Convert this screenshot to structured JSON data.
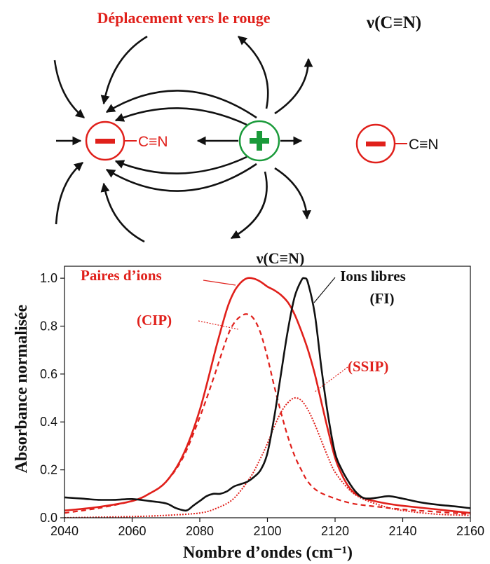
{
  "diagram": {
    "redshift_label": "Déplacement vers le rouge",
    "vibration_label": "ν(C≡N)",
    "anion_sign": "−",
    "cation_sign": "+",
    "cyanide_group": "C≡N",
    "free_cyanide_group": "C≡N",
    "colors": {
      "anion": "#e0201b",
      "cation": "#1a9a3a",
      "arrows": "#111111"
    }
  },
  "chart_data": {
    "type": "line",
    "title": "ν(C≡N)",
    "xlabel": "Nombre d’ondes (cm⁻¹)",
    "ylabel": "Absorbance normalisée",
    "xlim": [
      2040,
      2160
    ],
    "ylim": [
      0,
      1.05
    ],
    "xticks": [
      2040,
      2060,
      2080,
      2100,
      2120,
      2140,
      2160
    ],
    "yticks": [
      0.0,
      0.2,
      0.4,
      0.6,
      0.8,
      1.0
    ],
    "xtick_labels": [
      "2040",
      "2060",
      "2080",
      "2100",
      "2120",
      "2140",
      "2160"
    ],
    "ytick_labels": [
      "0.0",
      "0.2",
      "0.4",
      "0.6",
      "0.8",
      "1.0"
    ],
    "grid": false,
    "annotations": [
      {
        "text": "Paires d’ions",
        "color": "#e0201b"
      },
      {
        "text": "(CIP)",
        "color": "#e0201b"
      },
      {
        "text": "(SSIP)",
        "color": "#e0201b"
      },
      {
        "text": "Ions libres",
        "color": "#111111"
      },
      {
        "text": "(FI)",
        "color": "#111111"
      }
    ],
    "series": [
      {
        "color": "#e0201b",
        "style": "solid",
        "x": [
          2040,
          2050,
          2060,
          2065,
          2070,
          2075,
          2080,
          2085,
          2088,
          2090,
          2092,
          2094,
          2096,
          2098,
          2100,
          2102,
          2104,
          2106,
          2108,
          2110,
          2112,
          2114,
          2116,
          2118,
          2120,
          2122,
          2124,
          2126,
          2128,
          2130,
          2135,
          2140,
          2150,
          2160
        ],
        "y": [
          0.03,
          0.045,
          0.07,
          0.1,
          0.15,
          0.26,
          0.45,
          0.72,
          0.87,
          0.94,
          0.98,
          1.0,
          0.998,
          0.985,
          0.965,
          0.95,
          0.93,
          0.9,
          0.85,
          0.78,
          0.7,
          0.6,
          0.48,
          0.36,
          0.25,
          0.18,
          0.13,
          0.1,
          0.085,
          0.075,
          0.06,
          0.05,
          0.035,
          0.02
        ]
      },
      {
        "color": "#e0201b",
        "style": "dashed",
        "x": [
          2040,
          2050,
          2060,
          2065,
          2070,
          2075,
          2080,
          2084,
          2088,
          2090,
          2092,
          2094,
          2096,
          2098,
          2100,
          2102,
          2104,
          2106,
          2108,
          2110,
          2112,
          2115,
          2120,
          2125,
          2130,
          2140,
          2150,
          2160
        ],
        "y": [
          0.02,
          0.04,
          0.07,
          0.1,
          0.15,
          0.25,
          0.42,
          0.58,
          0.75,
          0.81,
          0.84,
          0.85,
          0.83,
          0.77,
          0.67,
          0.55,
          0.44,
          0.34,
          0.26,
          0.2,
          0.15,
          0.11,
          0.08,
          0.06,
          0.05,
          0.035,
          0.025,
          0.015
        ]
      },
      {
        "color": "#e0201b",
        "style": "dotted",
        "x": [
          2040,
          2060,
          2070,
          2080,
          2085,
          2090,
          2095,
          2098,
          2100,
          2102,
          2104,
          2106,
          2108,
          2110,
          2112,
          2114,
          2116,
          2118,
          2120,
          2124,
          2128,
          2135,
          2140,
          2150,
          2160
        ],
        "y": [
          0.0,
          0.005,
          0.01,
          0.02,
          0.04,
          0.08,
          0.17,
          0.25,
          0.31,
          0.38,
          0.44,
          0.48,
          0.5,
          0.49,
          0.45,
          0.39,
          0.32,
          0.25,
          0.19,
          0.12,
          0.08,
          0.045,
          0.03,
          0.015,
          0.01
        ]
      },
      {
        "color": "#111111",
        "style": "solid",
        "x": [
          2040,
          2045,
          2050,
          2055,
          2060,
          2065,
          2070,
          2073,
          2076,
          2078,
          2080,
          2082,
          2084,
          2086,
          2088,
          2090,
          2092,
          2094,
          2096,
          2098,
          2100,
          2102,
          2104,
          2106,
          2108,
          2110,
          2111,
          2112,
          2114,
          2116,
          2118,
          2120,
          2122,
          2124,
          2126,
          2128,
          2130,
          2133,
          2136,
          2140,
          2145,
          2150,
          2155,
          2160
        ],
        "y": [
          0.085,
          0.08,
          0.075,
          0.075,
          0.078,
          0.07,
          0.06,
          0.04,
          0.03,
          0.05,
          0.07,
          0.09,
          0.1,
          0.1,
          0.11,
          0.13,
          0.14,
          0.15,
          0.17,
          0.2,
          0.27,
          0.42,
          0.6,
          0.78,
          0.92,
          0.99,
          1.0,
          0.98,
          0.85,
          0.62,
          0.42,
          0.27,
          0.2,
          0.15,
          0.11,
          0.085,
          0.08,
          0.085,
          0.09,
          0.08,
          0.065,
          0.055,
          0.048,
          0.04
        ]
      }
    ]
  }
}
